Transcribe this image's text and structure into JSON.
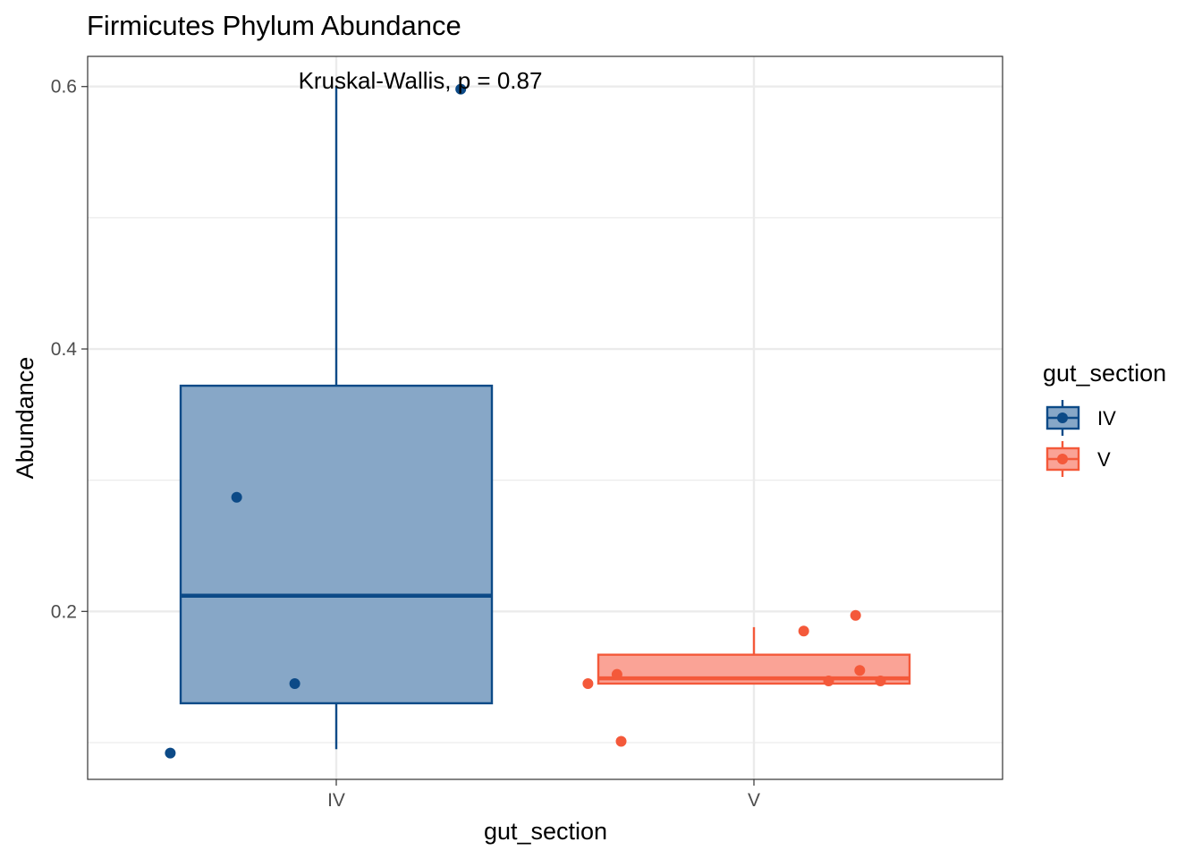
{
  "chart_data": {
    "type": "box",
    "title": "Firmicutes Phylum Abundance",
    "xlabel": "gut_section",
    "ylabel": "Abundance",
    "categories": [
      "IV",
      "V"
    ],
    "ylim": [
      0.072,
      0.623
    ],
    "yticks": [
      0.2,
      0.4,
      0.6
    ],
    "yticklabels": [
      "0.2",
      "0.4",
      "0.6"
    ],
    "grid": true,
    "annotation": "Kruskal-Wallis, p = 0.87",
    "legend": {
      "title": "gut_section",
      "position": "right",
      "entries": [
        "IV",
        "V"
      ]
    },
    "series": [
      {
        "name": "IV",
        "color": "#0c4a87",
        "fill": "#87a7c7",
        "box": {
          "min": 0.095,
          "q1": 0.13,
          "median": 0.212,
          "q3": 0.372,
          "max": 0.6
        },
        "points": [
          {
            "x_offset": -0.4,
            "y": 0.092
          },
          {
            "x_offset": -0.24,
            "y": 0.287
          },
          {
            "x_offset": -0.1,
            "y": 0.145
          },
          {
            "x_offset": 0.3,
            "y": 0.598
          }
        ]
      },
      {
        "name": "V",
        "color": "#f4593a",
        "fill": "#faa396",
        "box": {
          "min": 0.145,
          "q1": 0.145,
          "median": 0.149,
          "q3": 0.167,
          "max": 0.188
        },
        "points": [
          {
            "x_offset": -0.4,
            "y": 0.145
          },
          {
            "x_offset": -0.33,
            "y": 0.152
          },
          {
            "x_offset": -0.32,
            "y": 0.101
          },
          {
            "x_offset": 0.12,
            "y": 0.185
          },
          {
            "x_offset": 0.18,
            "y": 0.147
          },
          {
            "x_offset": 0.245,
            "y": 0.197
          },
          {
            "x_offset": 0.255,
            "y": 0.155
          },
          {
            "x_offset": 0.305,
            "y": 0.147
          }
        ]
      }
    ]
  }
}
